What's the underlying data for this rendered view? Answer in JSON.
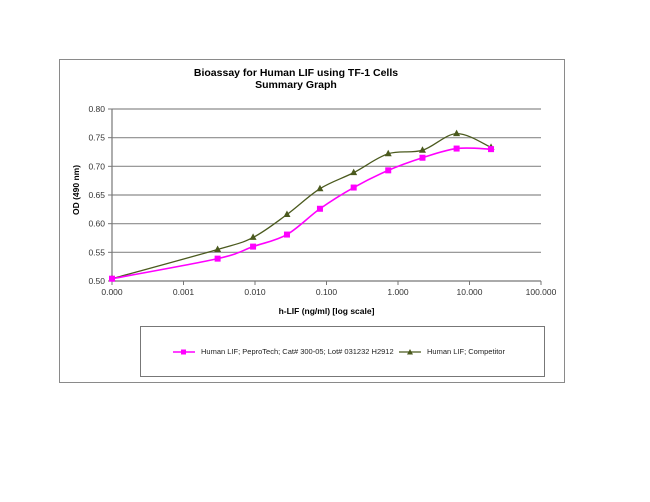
{
  "chart_data": {
    "type": "line",
    "title": "Bioassay for Human LIF using TF-1 Cells",
    "subtitle": "Summary Graph",
    "xlabel": "h-LIF (ng/ml) [log scale]",
    "ylabel": "OD (490 nm)",
    "x_scale": "log",
    "x_tick_labels": [
      "0.000",
      "0.001",
      "0.010",
      "0.100",
      "1.000",
      "10.000",
      "100.000"
    ],
    "y_tick_labels": [
      "0.50",
      "0.55",
      "0.60",
      "0.65",
      "0.70",
      "0.75",
      "0.80"
    ],
    "ylim": [
      0.5,
      0.8
    ],
    "xlim": [
      0.0001,
      100
    ],
    "grid": "horizontal",
    "legend_position": "bottom",
    "x": [
      0.0001,
      0.003,
      0.0094,
      0.028,
      0.081,
      0.24,
      0.73,
      2.2,
      6.6,
      20
    ],
    "series": [
      {
        "name": "Human LIF; PeproTech; Cat# 300-05; Lot# 031232 H2912",
        "color": "#ff00ff",
        "marker": "square",
        "values": [
          0.504,
          0.539,
          0.56,
          0.581,
          0.626,
          0.663,
          0.693,
          0.715,
          0.731,
          0.73
        ]
      },
      {
        "name": "Human LIF; Competitor",
        "color": "#4b5a1e",
        "marker": "triangle",
        "values": [
          0.504,
          0.555,
          0.576,
          0.616,
          0.661,
          0.689,
          0.722,
          0.728,
          0.757,
          0.733
        ]
      }
    ]
  },
  "title": {
    "line1": "Bioassay for Human LIF using TF-1 Cells",
    "line2": "Summary Graph"
  },
  "axes": {
    "xlabel": "h-LIF (ng/ml) [log scale]",
    "ylabel": "OD (490 nm)"
  },
  "legend": {
    "items": [
      {
        "label": "Human LIF; PeproTech; Cat# 300-05; Lot# 031232 H2912",
        "color": "#ff00ff",
        "marker": "square"
      },
      {
        "label": "Human LIF; Competitor",
        "color": "#4b5a1e",
        "marker": "triangle"
      }
    ]
  }
}
